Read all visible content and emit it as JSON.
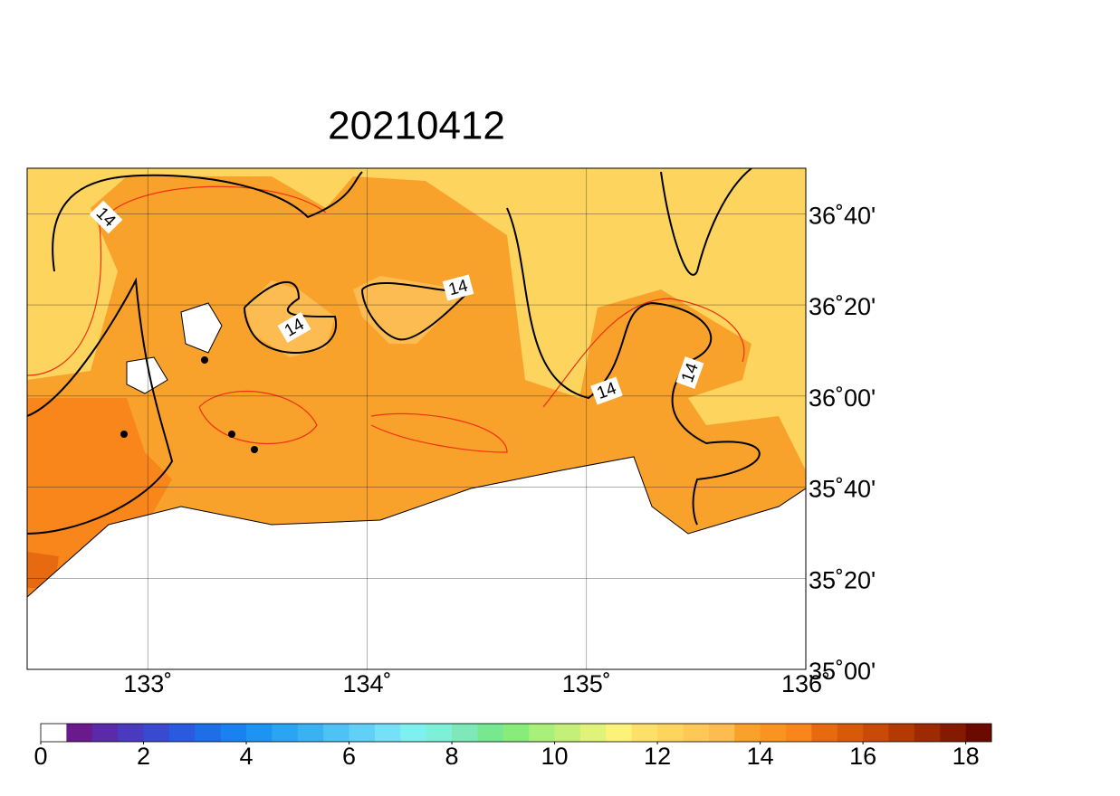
{
  "map": {
    "title": "20210412",
    "xlim": [
      132.45,
      136
    ],
    "ylim": [
      35,
      36.8333
    ],
    "xticks": [
      {
        "value": 133,
        "label": "133˚"
      },
      {
        "value": 134,
        "label": "134˚"
      },
      {
        "value": 135,
        "label": "135˚"
      },
      {
        "value": 136,
        "label": "136˚"
      }
    ],
    "yticks": [
      {
        "value": 35,
        "label": "35˚00'"
      },
      {
        "value": 35.3333,
        "label": "35˚20'"
      },
      {
        "value": 35.6667,
        "label": "35˚40'"
      },
      {
        "value": 36,
        "label": "36˚00'"
      },
      {
        "value": 36.3333,
        "label": "36˚20'"
      },
      {
        "value": 36.6667,
        "label": "36˚40'"
      }
    ],
    "contour_labels": [
      14,
      14,
      14,
      14,
      14
    ]
  },
  "colorbar": {
    "lim": [
      0,
      18.5
    ],
    "ticks": [
      0,
      2,
      4,
      6,
      8,
      10,
      12,
      14,
      16,
      18
    ],
    "colors": [
      "#ffffff",
      "#6a1a8c",
      "#5a2aa8",
      "#4a3abd",
      "#3a4ad0",
      "#2a5ae0",
      "#1e6ee8",
      "#1a82f0",
      "#1e94f2",
      "#2ba4f2",
      "#3ab2f2",
      "#4ec2f4",
      "#62d0f6",
      "#76e0f8",
      "#7ef0f0",
      "#7ef0d8",
      "#7ee8b8",
      "#78e890",
      "#88ec7a",
      "#a8f07a",
      "#c4f07a",
      "#e0f27a",
      "#fcf27a",
      "#fde06a",
      "#fdd45e",
      "#fdc858",
      "#fdbc52",
      "#f9a22b",
      "#f99420",
      "#f8861a",
      "#e86a10",
      "#d85a08",
      "#c84a06",
      "#b43a04",
      "#9c2a02",
      "#841a00",
      "#6a0a00"
    ]
  }
}
